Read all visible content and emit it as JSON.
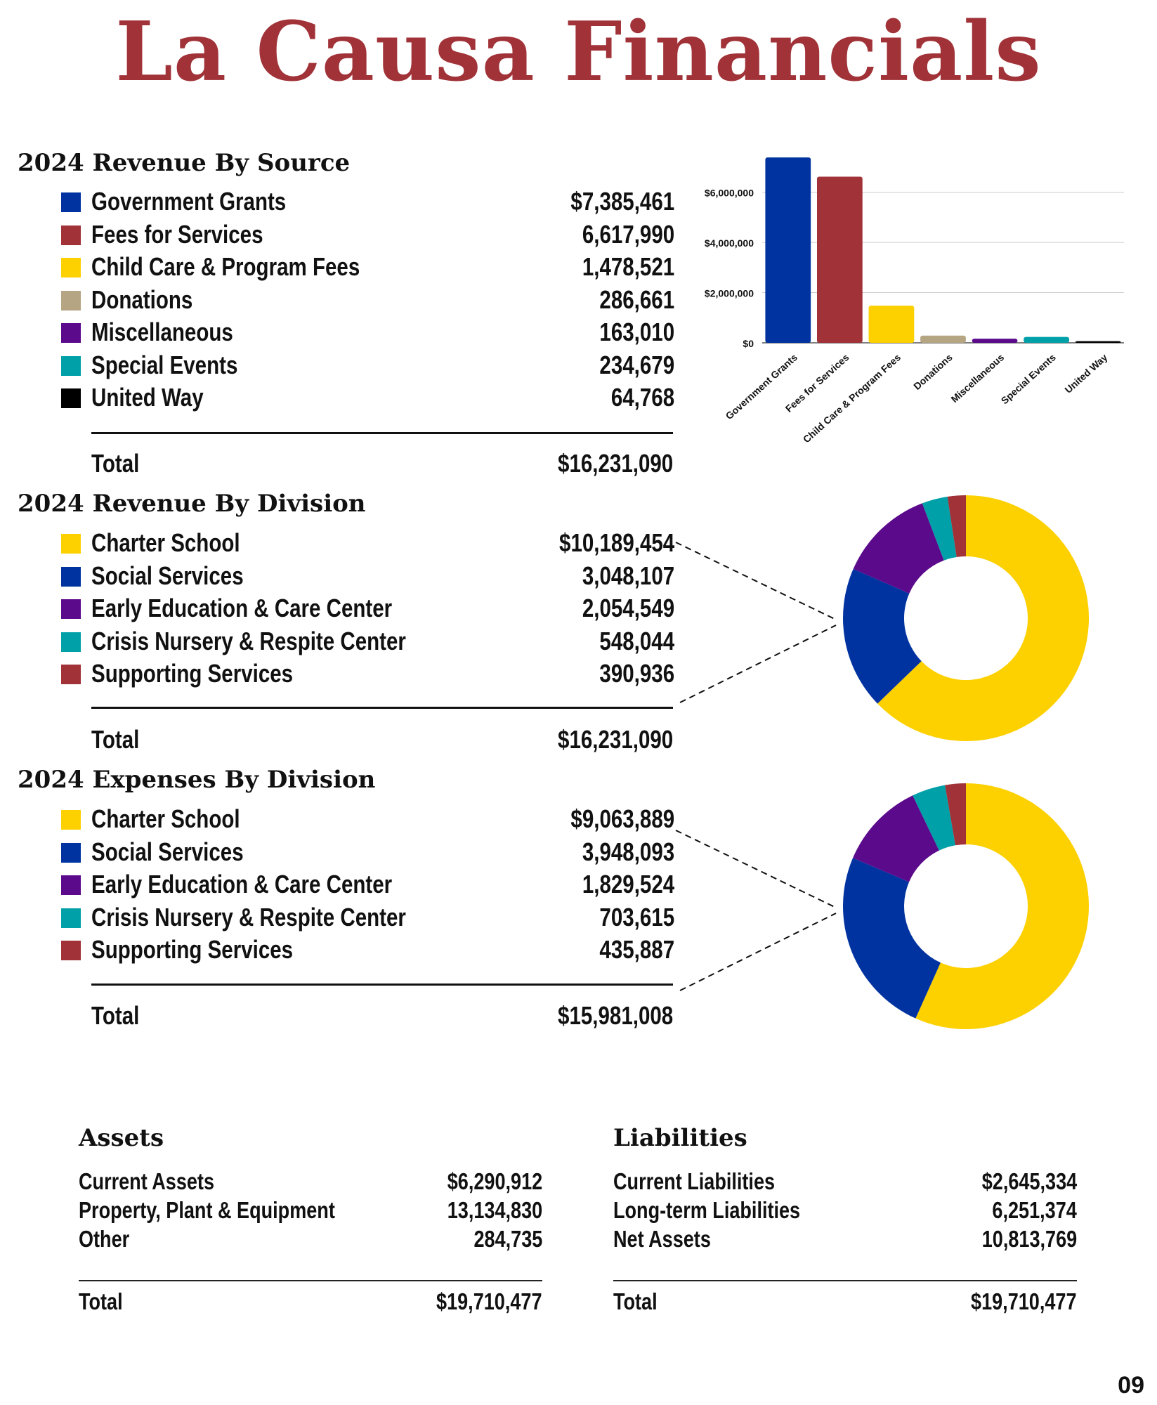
{
  "title": "La Causa Financials",
  "page_number": "09",
  "colors": {
    "title": "#A03238",
    "blue": "#0033A0",
    "red": "#A03238",
    "yellow": "#FDD000",
    "tan": "#B5A582",
    "purple": "#5B0A8C",
    "teal": "#00A0A8",
    "black": "#000000"
  },
  "revenue_source": {
    "heading": "2024 Revenue By Source",
    "items": [
      {
        "label": "Government Grants",
        "value": "$7,385,461",
        "color": "#0033A0"
      },
      {
        "label": "Fees for Services",
        "value": "6,617,990",
        "color": "#A03238"
      },
      {
        "label": "Child Care & Program Fees",
        "value": "1,478,521",
        "color": "#FDD000"
      },
      {
        "label": "Donations",
        "value": "286,661",
        "color": "#B5A582"
      },
      {
        "label": "Miscellaneous",
        "value": "163,010",
        "color": "#5B0A8C"
      },
      {
        "label": "Special Events",
        "value": "234,679",
        "color": "#00A0A8"
      },
      {
        "label": "United Way",
        "value": "64,768",
        "color": "#000000"
      }
    ],
    "total_label": "Total",
    "total_value": "$16,231,090"
  },
  "revenue_division": {
    "heading": "2024 Revenue By Division",
    "items": [
      {
        "label": "Charter School",
        "value": "$10,189,454",
        "color": "#FDD000"
      },
      {
        "label": "Social Services",
        "value": "3,048,107",
        "color": "#0033A0"
      },
      {
        "label": "Early Education & Care Center",
        "value": "2,054,549",
        "color": "#5B0A8C"
      },
      {
        "label": "Crisis Nursery & Respite Center",
        "value": "548,044",
        "color": "#00A0A8"
      },
      {
        "label": "Supporting Services",
        "value": "390,936",
        "color": "#A03238"
      }
    ],
    "total_label": "Total",
    "total_value": "$16,231,090"
  },
  "expenses_division": {
    "heading": "2024 Expenses By Division",
    "items": [
      {
        "label": "Charter School",
        "value": "$9,063,889",
        "color": "#FDD000"
      },
      {
        "label": "Social Services",
        "value": "3,948,093",
        "color": "#0033A0"
      },
      {
        "label": "Early Education & Care Center",
        "value": "1,829,524",
        "color": "#5B0A8C"
      },
      {
        "label": "Crisis Nursery & Respite Center",
        "value": "703,615",
        "color": "#00A0A8"
      },
      {
        "label": "Supporting Services",
        "value": "435,887",
        "color": "#A03238"
      }
    ],
    "total_label": "Total",
    "total_value": "$15,981,008"
  },
  "assets": {
    "heading": "Assets",
    "items": [
      {
        "label": "Current Assets",
        "value": "$6,290,912"
      },
      {
        "label": "Property, Plant & Equipment",
        "value": "13,134,830"
      },
      {
        "label": "Other",
        "value": "284,735"
      }
    ],
    "total_label": "Total",
    "total_value": "$19,710,477"
  },
  "liabilities": {
    "heading": "Liabilities",
    "items": [
      {
        "label": "Current Liabilities",
        "value": "$2,645,334"
      },
      {
        "label": "Long-term Liabilities",
        "value": "6,251,374"
      },
      {
        "label": "Net Assets",
        "value": "10,813,769"
      }
    ],
    "total_label": "Total",
    "total_value": "$19,710,477"
  },
  "chart_data": [
    {
      "type": "bar",
      "categories": [
        "Government Grants",
        "Fees for Services",
        "Child Care & Program Fees",
        "Donations",
        "Miscellaneous",
        "Special Events",
        "United Way"
      ],
      "values": [
        7385461,
        6617990,
        1478521,
        286661,
        163010,
        234679,
        64768
      ],
      "colors": [
        "#0033A0",
        "#A03238",
        "#FDD000",
        "#B5A582",
        "#5B0A8C",
        "#00A0A8",
        "#000000"
      ],
      "ylim": [
        0,
        7500000
      ],
      "yticks": [
        0,
        2000000,
        4000000,
        6000000
      ],
      "ytick_labels": [
        "$0",
        "$2,000,000",
        "$4,000,000",
        "$6,000,000"
      ],
      "grid": true
    },
    {
      "type": "pie",
      "donut": true,
      "labels": [
        "Charter School",
        "Social Services",
        "Early Education & Care Center",
        "Crisis Nursery & Respite Center",
        "Supporting Services"
      ],
      "values": [
        10189454,
        3048107,
        2054549,
        548044,
        390936
      ],
      "colors": [
        "#FDD000",
        "#0033A0",
        "#5B0A8C",
        "#00A0A8",
        "#A03238"
      ]
    },
    {
      "type": "pie",
      "donut": true,
      "labels": [
        "Charter School",
        "Social Services",
        "Early Education & Care Center",
        "Crisis Nursery & Respite Center",
        "Supporting Services"
      ],
      "values": [
        9063889,
        3948093,
        1829524,
        703615,
        435887
      ],
      "colors": [
        "#FDD000",
        "#0033A0",
        "#5B0A8C",
        "#00A0A8",
        "#A03238"
      ]
    }
  ]
}
